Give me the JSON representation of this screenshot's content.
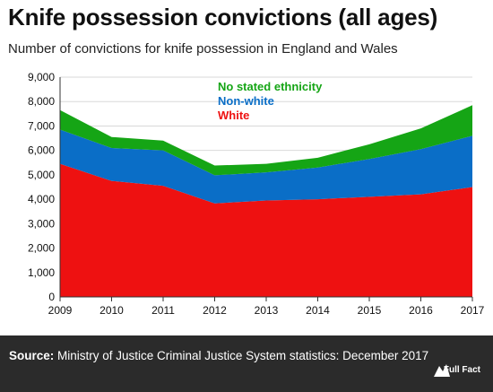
{
  "header": {
    "title": "Knife possession convictions (all ages)",
    "subtitle": "Number of convictions for knife possession in England and Wales"
  },
  "footer": {
    "source_label": "Source:",
    "source_text": "Ministry of Justice Criminal Justice System statistics: December 2017",
    "logo_text": "Full Fact"
  },
  "chart_data": {
    "type": "area",
    "stacked": true,
    "x": [
      2009,
      2010,
      2011,
      2012,
      2013,
      2014,
      2015,
      2016,
      2017
    ],
    "ylim": [
      0,
      9000
    ],
    "yticks": [
      0,
      1000,
      2000,
      3000,
      4000,
      5000,
      6000,
      7000,
      8000,
      9000
    ],
    "ytick_labels": [
      "0",
      "1,000",
      "2,000",
      "3,000",
      "4,000",
      "5,000",
      "6,000",
      "7,000",
      "8,000",
      "9,000"
    ],
    "grid": true,
    "legend": "top-center",
    "series": [
      {
        "name": "White",
        "color": "#ee1111",
        "values": [
          5450,
          4750,
          4550,
          3830,
          3950,
          4000,
          4100,
          4200,
          4500
        ]
      },
      {
        "name": "Non-white",
        "color": "#0a6ec7",
        "values": [
          1400,
          1350,
          1450,
          1150,
          1150,
          1300,
          1550,
          1850,
          2100
        ]
      },
      {
        "name": "No stated ethnicity",
        "color": "#15a515",
        "values": [
          800,
          450,
          400,
          400,
          350,
          400,
          600,
          850,
          1250
        ]
      }
    ]
  }
}
